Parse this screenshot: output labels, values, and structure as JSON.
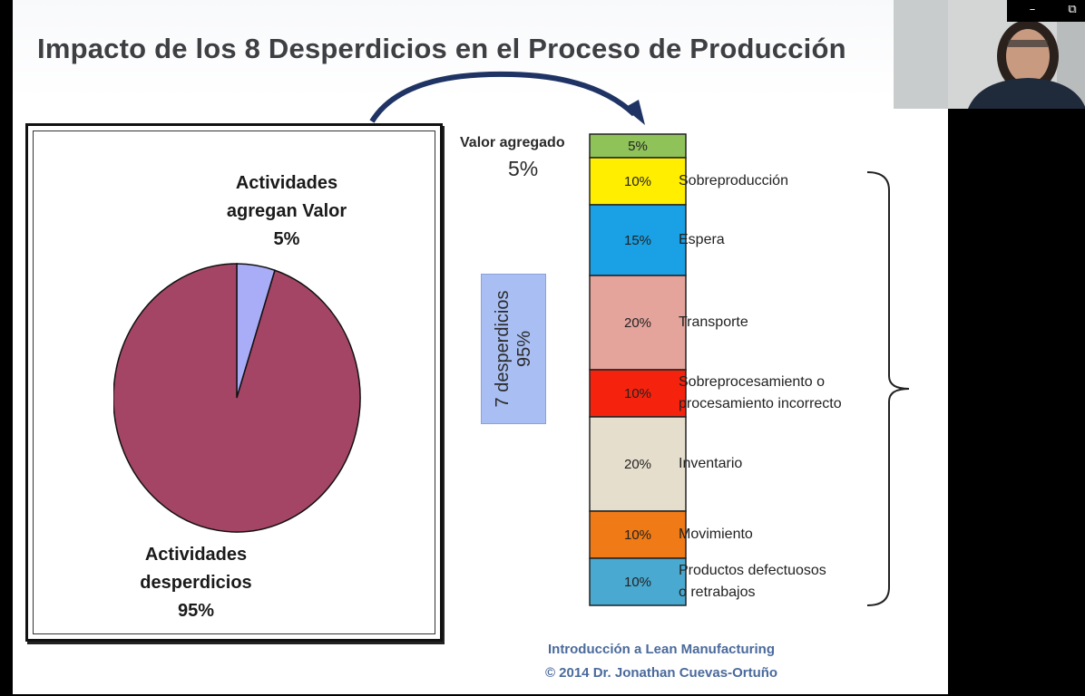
{
  "slide": {
    "title": "Impacto de los 8 Desperdicios en el Proceso de Producción",
    "footer_line1": "Introducción a Lean Manufacturing",
    "footer_line2": "© 2014 Dr. Jonathan Cuevas-Ortuño"
  },
  "pie_labels": {
    "value_line1": "Actividades",
    "value_line2": "agregan Valor",
    "value_pct": "5%",
    "waste_line1": "Actividades",
    "waste_line2": "desperdicios",
    "waste_pct": "95%"
  },
  "stack_labels": {
    "valor_agregado": "Valor agregado",
    "valor_agregado_pct": "5%",
    "waste_box_line1": "7 desperdicios",
    "waste_box_line2": "95%"
  },
  "chart_data": [
    {
      "type": "pie",
      "slices": [
        {
          "label": "Actividades agregan Valor",
          "value": 5,
          "color": "#a9acf7"
        },
        {
          "label": "Actividades desperdicios",
          "value": 95,
          "color": "#a44565"
        }
      ]
    },
    {
      "type": "bar",
      "stacked": true,
      "segments": [
        {
          "label": "",
          "value": 5,
          "text": "5%",
          "color": "#8fc35a"
        },
        {
          "label": "Sobreproducción",
          "value": 10,
          "text": "10%",
          "color": "#ffee00"
        },
        {
          "label": "Espera",
          "value": 15,
          "text": "15%",
          "color": "#1aa0e4"
        },
        {
          "label": "Transporte",
          "value": 20,
          "text": "20%",
          "color": "#e4a49c"
        },
        {
          "label": "Sobreprocesamiento o",
          "label2": "procesamiento incorrecto",
          "value": 10,
          "text": "10%",
          "color": "#f5230d"
        },
        {
          "label": "Inventario",
          "value": 20,
          "text": "20%",
          "color": "#e6decd"
        },
        {
          "label": "Movimiento",
          "value": 10,
          "text": "10%",
          "color": "#ef7a16"
        },
        {
          "label": "Productos defectuosos",
          "label2": "o retrabajos",
          "value": 10,
          "text": "10%",
          "color": "#4aa9d0"
        }
      ]
    }
  ],
  "window": {
    "minimize_icon": "minimize-icon",
    "restore_icon": "restore-icon",
    "webcam_feed": "presenter-video"
  }
}
